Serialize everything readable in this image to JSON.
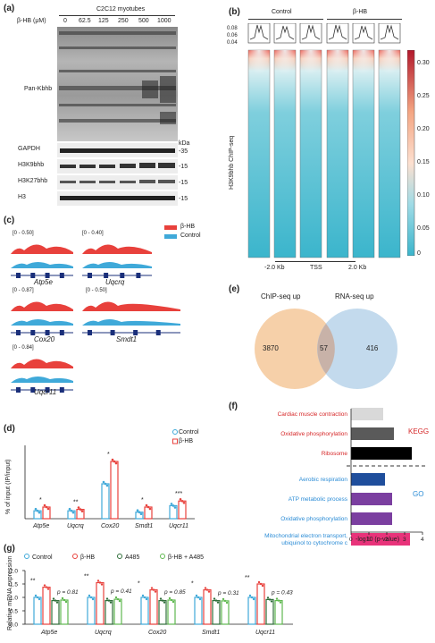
{
  "panel_labels": [
    "(a)",
    "(b)",
    "(c)",
    "(d)",
    "(e)",
    "(f)",
    "(g)"
  ],
  "panel_a": {
    "cell": "C2C12 myotubes",
    "dose_label": "β-HB (μM)",
    "doses": [
      "0",
      "62.5",
      "125",
      "250",
      "500",
      "1000"
    ],
    "blots": [
      "Pan-Kbhb",
      "GAPDH",
      "H3K9bhb",
      "H3K27bhb",
      "H3"
    ],
    "kda": "kDa",
    "markers": [
      "-35",
      "-15",
      "-15",
      "-15"
    ]
  },
  "panel_b": {
    "groups": [
      "Control",
      "β-HB"
    ],
    "profile_ticks": [
      "0.08",
      "0.06",
      "0.04"
    ],
    "ylabel": "H3K9bhb ChIP-seq",
    "xticks": [
      "-2.0 Kb",
      "TSS",
      "2.0 Kb"
    ],
    "colorbar_ticks": [
      "0.30",
      "0.25",
      "0.20",
      "0.15",
      "0.10",
      "0.05",
      "0"
    ]
  },
  "panel_c": {
    "legend": [
      "β-HB",
      "Control"
    ],
    "tracks": [
      {
        "gene": "Atp5e",
        "range": "[0 - 0.50]"
      },
      {
        "gene": "Uqcrq",
        "range": "[0 - 0.40]"
      },
      {
        "gene": "Cox20",
        "range": "[0 - 0.87]"
      },
      {
        "gene": "Smdt1",
        "range": "[0 - 0.50]"
      },
      {
        "gene": "Uqcr11",
        "range": "[0 - 0.84]"
      }
    ]
  },
  "panel_e": {
    "left_label": "ChIP-seq up",
    "right_label": "RNA-seq up",
    "left_only": "3870",
    "overlap": "57",
    "right_only": "416"
  },
  "panel_d": {
    "ylabel": "% of input (IP/input)",
    "legend": [
      "Control",
      "β-HB"
    ],
    "sig": [
      "*",
      "**",
      "*",
      "*",
      "***"
    ]
  },
  "panel_f": {
    "kegg_label": "KEGG",
    "go_label": "GO",
    "xlabel": "-log10 (p-value)",
    "xticks": [
      "0",
      "1",
      "2",
      "3",
      "4"
    ]
  },
  "panel_g": {
    "ylabel": "Relative mRNA expression",
    "legend": [
      "Control",
      "β-HB",
      "A485",
      "β-HB + A485"
    ],
    "sig": [
      "**",
      "**",
      "*",
      "*",
      "**"
    ],
    "pvals": [
      "p = 0.81",
      "p = 0.41",
      "p = 0.85",
      "p = 0.31",
      "p = 0.43"
    ],
    "yticks": [
      "2.0",
      "1.5",
      "1.0",
      "0.5",
      "0.0"
    ]
  },
  "chart_data": [
    {
      "type": "bar",
      "panel": "d",
      "ylabel": "% of input (IP/input)",
      "categories": [
        "Atp5e",
        "Uqcrq",
        "Cox20",
        "Smdt1",
        "Uqcr11"
      ],
      "series": [
        {
          "name": "Control",
          "values": [
            0.017,
            0.017,
            0.075,
            0.014,
            0.028
          ],
          "color": "#3fa9d9"
        },
        {
          "name": "β-HB",
          "values": [
            0.025,
            0.02,
            0.123,
            0.025,
            0.038
          ],
          "color": "#e8413c"
        }
      ]
    },
    {
      "type": "bar",
      "panel": "f",
      "xlabel": "-log10 (p-value)",
      "xlim": [
        0,
        4
      ],
      "categories": [
        "Cardiac muscle contraction",
        "Oxidative phosphorylation",
        "Ribosome",
        "Aerobic respiration",
        "ATP metabolic process",
        "Oxidative phosphorylation",
        "Mitochondrial electron transport, ubiquinol to cytochrome c"
      ],
      "values": [
        1.8,
        2.4,
        3.4,
        1.9,
        2.3,
        2.3,
        3.3
      ],
      "colors": [
        "#d9d9d9",
        "#5a5a5a",
        "#000000",
        "#1f4e9c",
        "#7b3fa0",
        "#7b3fa0",
        "#e8337a"
      ],
      "label_colors": [
        "#d62728",
        "#d62728",
        "#d62728",
        "#2b8cd6",
        "#2b8cd6",
        "#2b8cd6",
        "#2b8cd6"
      ],
      "group_labels": [
        "KEGG",
        "GO"
      ]
    },
    {
      "type": "bar",
      "panel": "g",
      "ylabel": "Relative mRNA expression",
      "ylim": [
        0,
        2.0
      ],
      "categories": [
        "Atp5e",
        "Uqcrq",
        "Cox20",
        "Smdt1",
        "Uqcr11"
      ],
      "series": [
        {
          "name": "Control",
          "values": [
            1.0,
            1.0,
            1.0,
            1.0,
            1.0
          ],
          "color": "#3fa9d9"
        },
        {
          "name": "β-HB",
          "values": [
            1.38,
            1.55,
            1.28,
            1.28,
            1.5
          ],
          "color": "#e8413c"
        },
        {
          "name": "A485",
          "values": [
            0.88,
            0.88,
            0.88,
            0.88,
            0.92
          ],
          "color": "#2f6e3a"
        },
        {
          "name": "β-HB + A485",
          "values": [
            0.9,
            0.93,
            0.9,
            0.87,
            0.88
          ],
          "color": "#5fb84f"
        }
      ]
    }
  ]
}
